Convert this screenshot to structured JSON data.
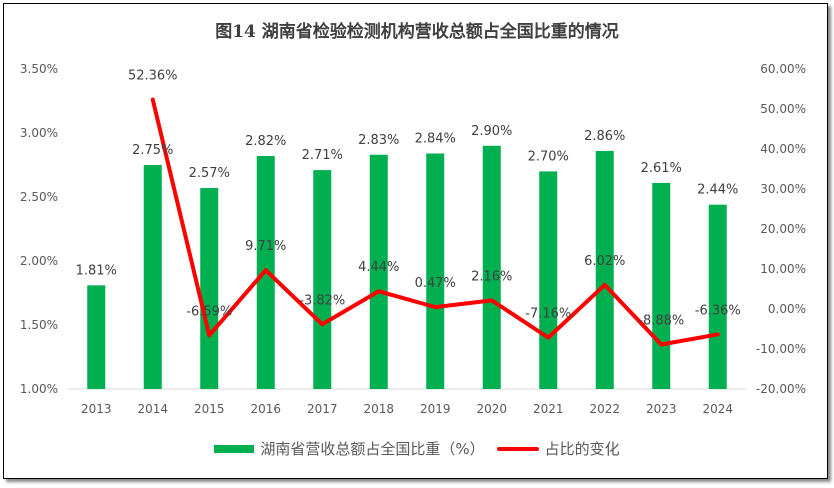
{
  "chart_data": {
    "type": "bar+line",
    "title": "图14 湖南省检验检测机构营收总额占全国比重的情况",
    "categories": [
      "2013",
      "2014",
      "2015",
      "2016",
      "2017",
      "2018",
      "2019",
      "2020",
      "2021",
      "2022",
      "2023",
      "2024"
    ],
    "series": [
      {
        "name": "湖南省营收总额占全国比重（%）",
        "type": "bar",
        "axis": "left",
        "color": "#00B050",
        "values": [
          1.81,
          2.75,
          2.57,
          2.82,
          2.71,
          2.83,
          2.84,
          2.9,
          2.7,
          2.86,
          2.61,
          2.44
        ],
        "labels": [
          "1.81%",
          "2.75%",
          "2.57%",
          "2.82%",
          "2.71%",
          "2.83%",
          "2.84%",
          "2.90%",
          "2.70%",
          "2.86%",
          "2.61%",
          "2.44%"
        ]
      },
      {
        "name": "占比的变化",
        "type": "line",
        "axis": "right",
        "color": "#FF0000",
        "values": [
          null,
          52.36,
          -6.59,
          9.71,
          -3.82,
          4.44,
          0.47,
          2.16,
          -7.16,
          6.02,
          -8.88,
          -6.36
        ],
        "labels": [
          "",
          "52.36%",
          "-6.59%",
          "9.71%",
          "-3.82%",
          "4.44%",
          "0.47%",
          "2.16%",
          "-7.16%",
          "6.02%",
          "-8.88%",
          "-6.36%"
        ]
      }
    ],
    "left_axis": {
      "range": [
        1.0,
        3.5
      ],
      "ticks": [
        "1.00%",
        "1.50%",
        "2.00%",
        "2.50%",
        "3.00%",
        "3.50%"
      ]
    },
    "right_axis": {
      "range": [
        -20,
        60
      ],
      "ticks": [
        "-20.00%",
        "-10.00%",
        "0.00%",
        "10.00%",
        "20.00%",
        "30.00%",
        "40.00%",
        "50.00%",
        "60.00%"
      ]
    },
    "grid": false,
    "legend": "bottom"
  }
}
